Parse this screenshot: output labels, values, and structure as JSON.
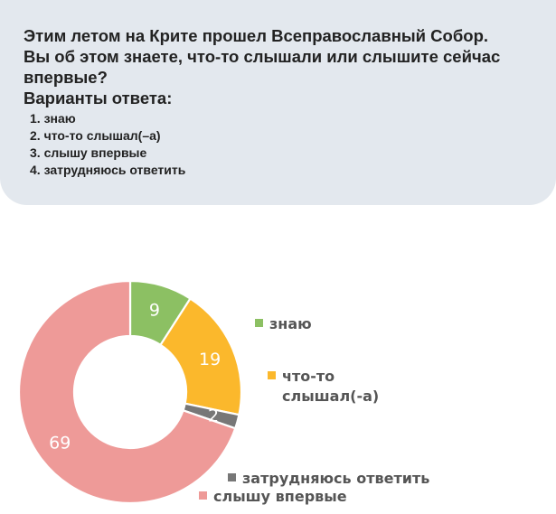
{
  "question": {
    "lines": [
      "Этим летом на Крите прошел Всеправославный Собор.",
      "Вы об этом знаете, что-то слышали или слышите сейчас",
      "впервые?"
    ],
    "answers_heading": "Варианты ответа:",
    "options": [
      "1. знаю",
      "2. что-то слышал(–а)",
      "3. слышу впервые",
      "4. затрудняюсь ответить"
    ]
  },
  "chart_data": {
    "type": "pie",
    "donut": true,
    "categories": [
      "знаю",
      "что-то слышал(-а)",
      "затрудняюсь ответить",
      "слышу впервые"
    ],
    "values": [
      9,
      19,
      2,
      69
    ],
    "value_labels": [
      "9",
      "19",
      "2",
      "69"
    ],
    "colors": [
      "#8cc063",
      "#fbb82c",
      "#777777",
      "#ee9a98"
    ],
    "legend": [
      {
        "lines": [
          "знаю"
        ],
        "color": "#8cc063"
      },
      {
        "lines": [
          "что-то",
          "слышал(-а)"
        ],
        "color": "#fbb82c"
      },
      {
        "lines": [
          "затрудняюсь ответить"
        ],
        "color": "#777777"
      },
      {
        "lines": [
          "слышу впервые"
        ],
        "color": "#ee9a98"
      }
    ],
    "legend_placement": "right"
  }
}
